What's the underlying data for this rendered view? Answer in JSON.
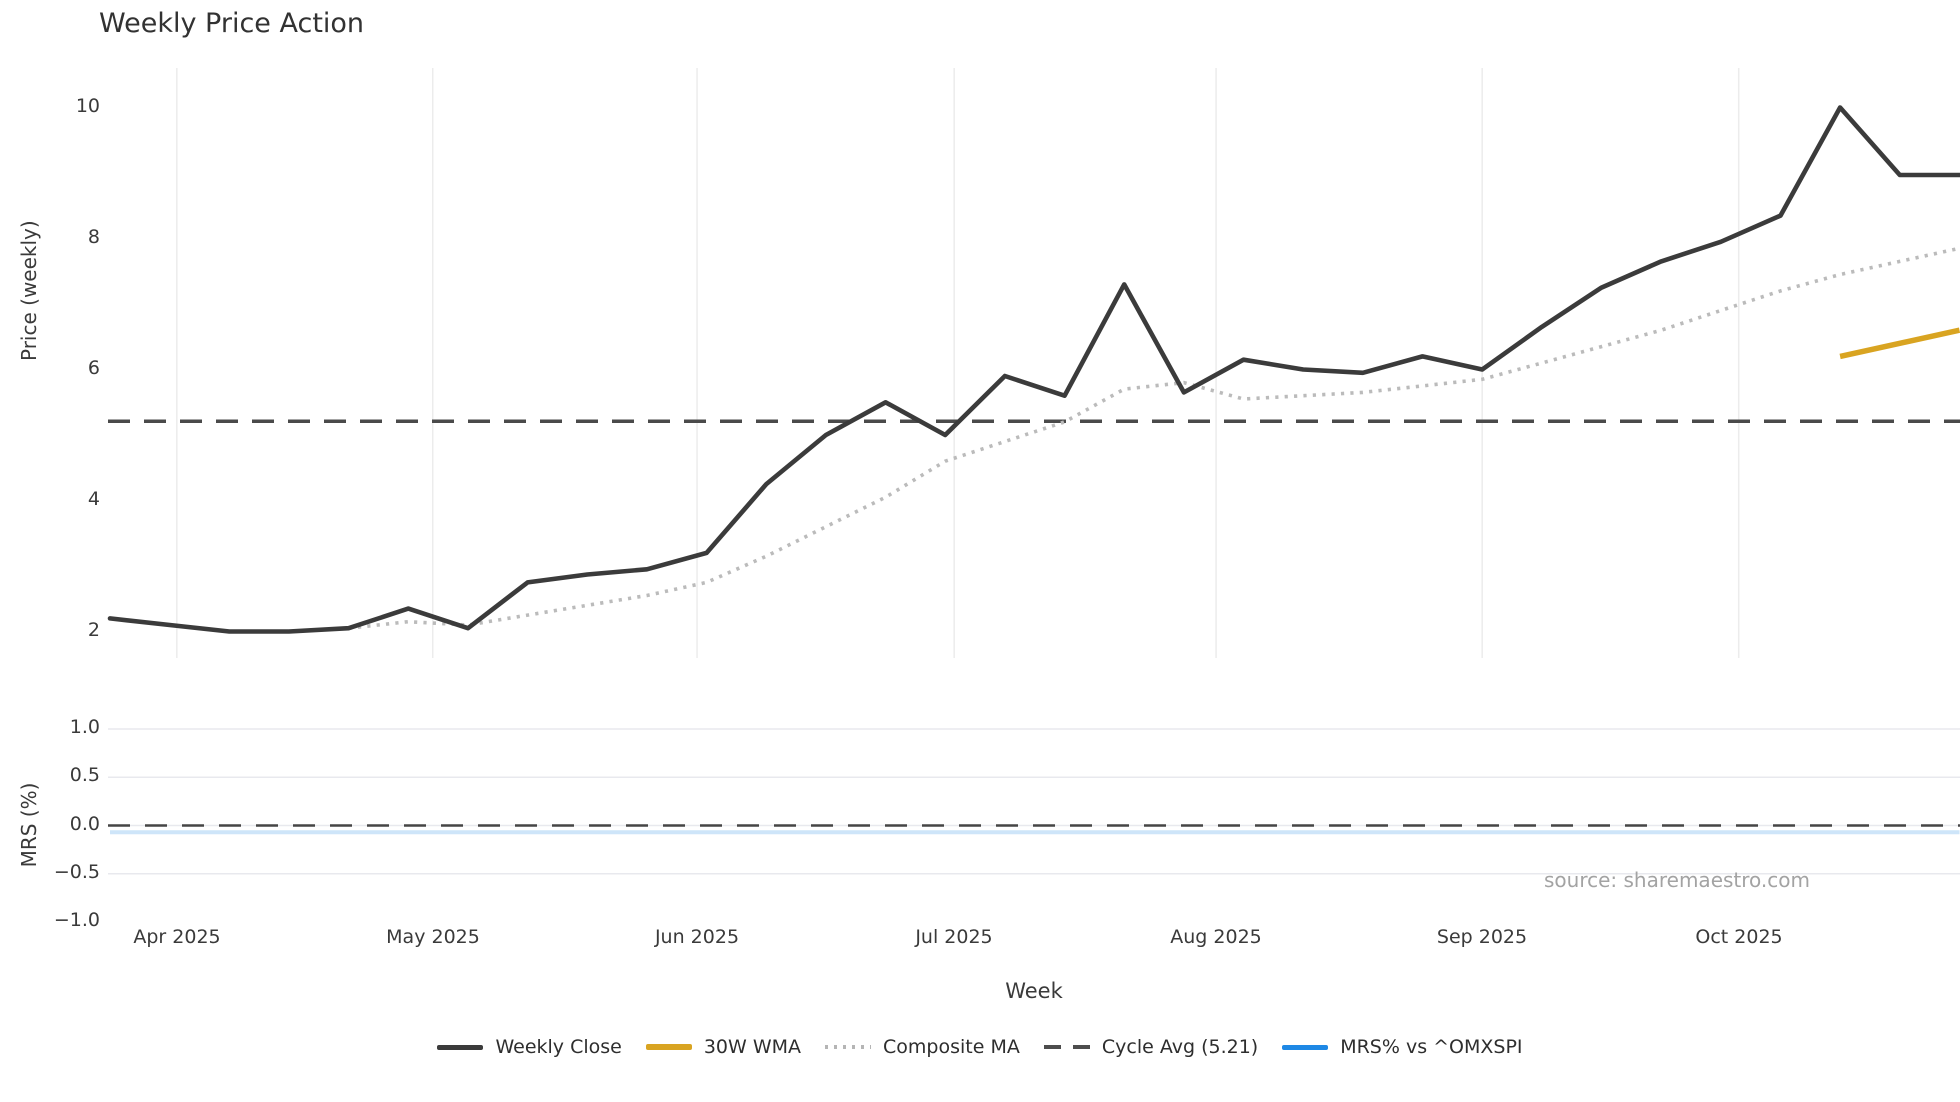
{
  "title": "Weekly Price Action",
  "price_axis": {
    "label": "Price (weekly)",
    "ticks": [
      "10",
      "8",
      "6",
      "4",
      "2"
    ]
  },
  "mrs_axis": {
    "label": "MRS (%)",
    "ticks": [
      "1.0",
      "0.5",
      "0.0",
      "−0.5",
      "−1.0"
    ]
  },
  "x_axis": {
    "label": "Week",
    "months": [
      "Apr 2025",
      "May 2025",
      "Jun 2025",
      "Jul 2025",
      "Aug 2025",
      "Sep 2025",
      "Oct 2025"
    ]
  },
  "source": "source: sharemaestro.com",
  "legend": [
    {
      "label": "Weekly Close",
      "style": "solid",
      "color": "#3b3b3b"
    },
    {
      "label": "30W WMA",
      "style": "solid",
      "color": "#d9a421"
    },
    {
      "label": "Composite MA",
      "style": "dotted",
      "color": "#b5b5b5"
    },
    {
      "label": "Cycle Avg (5.21)",
      "style": "dashed",
      "color": "#4d4d4d"
    },
    {
      "label": "MRS% vs ^OMXSPI",
      "style": "solid",
      "color": "#1e88e5"
    }
  ],
  "colors": {
    "weekly_close": "#3b3b3b",
    "wma_30w": "#d9a421",
    "composite_ma": "#bbbbbb",
    "cycle_avg": "#4a4a4a",
    "mrs_line": "#1e88e5",
    "main_gridline": "#ececec",
    "mrs_gridline": "#e8e9ee",
    "source_text": "#a3a3a3"
  },
  "chart_data": [
    {
      "type": "line",
      "panel": "price",
      "title": "Weekly Price Action",
      "xlabel": "Week",
      "ylabel": "Price (weekly)",
      "x_unit": "week_index_1_to_32",
      "ylim": [
        1.6,
        10.65
      ],
      "yticks": [
        10,
        8,
        6,
        4,
        2
      ],
      "grid": "vertical-month-lines",
      "legend_position": "bottom-center",
      "month_ticks": [
        {
          "label": "Apr 2025",
          "week": 2.12
        },
        {
          "label": "May 2025",
          "week": 6.41
        },
        {
          "label": "Jun 2025",
          "week": 10.84
        },
        {
          "label": "Jul 2025",
          "week": 15.15
        },
        {
          "label": "Aug 2025",
          "week": 19.54
        },
        {
          "label": "Sep 2025",
          "week": 24.0
        },
        {
          "label": "Oct 2025",
          "week": 28.3
        }
      ],
      "series": [
        {
          "name": "Weekly Close",
          "style": "solid",
          "color": "#3b3b3b",
          "values": [
            2.2,
            2.1,
            2.0,
            2.0,
            2.05,
            2.35,
            2.05,
            2.75,
            2.87,
            2.95,
            3.2,
            4.25,
            5.0,
            5.5,
            5.0,
            5.9,
            5.6,
            7.3,
            5.65,
            6.15,
            6.0,
            5.95,
            6.2,
            6.0,
            6.65,
            7.25,
            7.65,
            7.95,
            8.35,
            10.0,
            8.97,
            8.97
          ]
        },
        {
          "name": "30W WMA",
          "style": "solid",
          "color": "#d9a421",
          "values": [
            null,
            null,
            null,
            null,
            null,
            null,
            null,
            null,
            null,
            null,
            null,
            null,
            null,
            null,
            null,
            null,
            null,
            null,
            null,
            null,
            null,
            null,
            null,
            null,
            null,
            null,
            null,
            null,
            null,
            6.2,
            6.4,
            6.6
          ]
        },
        {
          "name": "Composite MA",
          "style": "dotted",
          "color": "#bbbbbb",
          "values": [
            null,
            null,
            null,
            null,
            2.05,
            2.15,
            2.1,
            2.25,
            2.4,
            2.55,
            2.75,
            3.15,
            3.6,
            4.05,
            4.6,
            4.9,
            5.2,
            5.7,
            5.8,
            5.55,
            5.6,
            5.65,
            5.75,
            5.85,
            6.1,
            6.35,
            6.6,
            6.9,
            7.2,
            7.45,
            7.65,
            7.85
          ]
        },
        {
          "name": "Cycle Avg (5.21)",
          "style": "dashed",
          "color": "#4a4a4a",
          "constant": 5.21
        }
      ]
    },
    {
      "type": "line",
      "panel": "mrs",
      "ylabel": "MRS (%)",
      "ylim": [
        -1.15,
        1.15
      ],
      "yticks": [
        1.0,
        0.5,
        0.0,
        -0.5,
        -1.0
      ],
      "grid": "horizontal-lines",
      "series": [
        {
          "name": "MRS% vs ^OMXSPI",
          "style": "solid",
          "color": "#1e88e5",
          "opacity": 0.22,
          "values": [
            -0.07,
            -0.07,
            -0.07,
            -0.07,
            -0.07,
            -0.07,
            -0.07,
            -0.07,
            -0.07,
            -0.07,
            -0.07,
            -0.07,
            -0.07,
            -0.07,
            -0.07,
            -0.07,
            -0.07,
            -0.07,
            -0.07,
            -0.07,
            -0.07,
            -0.07,
            -0.07,
            -0.07,
            -0.07,
            -0.07,
            -0.07,
            -0.07,
            -0.07,
            -0.07,
            -0.07,
            -0.07
          ]
        },
        {
          "name": "zero-line",
          "style": "dashed",
          "color": "#454545",
          "constant": 0.0
        }
      ]
    }
  ]
}
